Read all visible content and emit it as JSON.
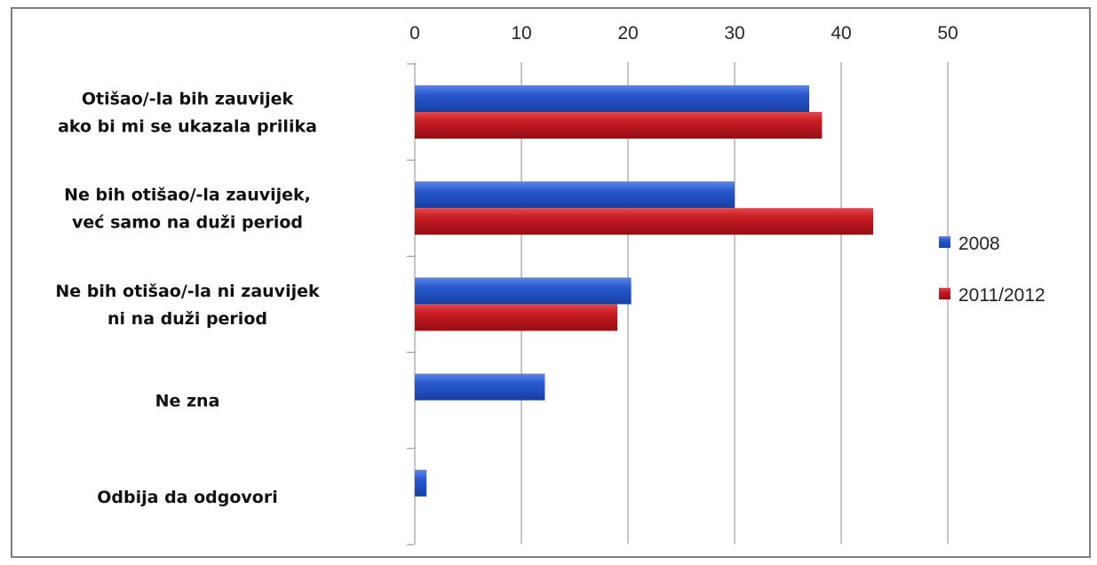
{
  "chart_data": {
    "type": "bar",
    "orientation": "horizontal",
    "categories": [
      [
        "Otišao/-la bih zauvijek",
        "ako bi mi se ukazala prilika"
      ],
      [
        "Ne bih otišao/-la zauvijek,",
        "već samo na duži period"
      ],
      [
        "Ne bih otišao/-la ni zauvijek",
        "ni na duži period"
      ],
      [
        "Ne zna"
      ],
      [
        "Odbija da odgovori"
      ]
    ],
    "series": [
      {
        "name": "2008",
        "color": "#1f4fc1",
        "values": [
          37,
          30,
          20.3,
          12.2,
          1.1
        ]
      },
      {
        "name": "2011/2012",
        "color": "#c1161c",
        "values": [
          38.2,
          43,
          19,
          null,
          null
        ]
      }
    ],
    "xlim": [
      0,
      50
    ],
    "xticks": [
      0,
      10,
      20,
      30,
      40,
      50
    ],
    "x_axis_position": "top",
    "grid": true,
    "legend_position": "right",
    "title": "",
    "xlabel": "",
    "ylabel": ""
  }
}
